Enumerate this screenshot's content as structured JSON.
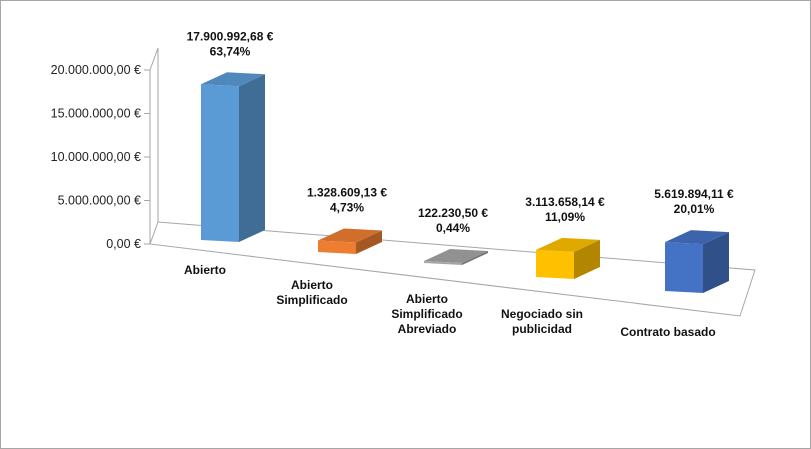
{
  "chart_data": {
    "type": "bar",
    "title": "",
    "xlabel": "",
    "ylabel": "",
    "ylim": [
      0,
      20000000
    ],
    "y_ticks": [
      "0,00 €",
      "5.000.000,00 €",
      "10.000.000,00 €",
      "15.000.000,00 €",
      "20.000.000,00 €"
    ],
    "categories": [
      [
        "Abierto"
      ],
      [
        "Abierto",
        "Simplificado"
      ],
      [
        "Abierto",
        "Simplificado",
        "Abreviado"
      ],
      [
        "Negociado sin",
        "publicidad"
      ],
      [
        "Contrato basado"
      ]
    ],
    "values": [
      17900992.68,
      1328609.13,
      122230.5,
      3113658.14,
      5619894.11
    ],
    "value_labels": [
      "17.900.992,68 €",
      "1.328.609,13 €",
      "122.230,50 €",
      "3.113.658,14 €",
      "5.619.894,11 €"
    ],
    "percent_labels": [
      "63,74%",
      "4,73%",
      "0,44%",
      "11,09%",
      "20,01%"
    ],
    "colors": [
      "#5b9bd5",
      "#ed7d31",
      "#a5a5a5",
      "#ffc000",
      "#4472c4"
    ],
    "grid": false,
    "legend": "none"
  }
}
